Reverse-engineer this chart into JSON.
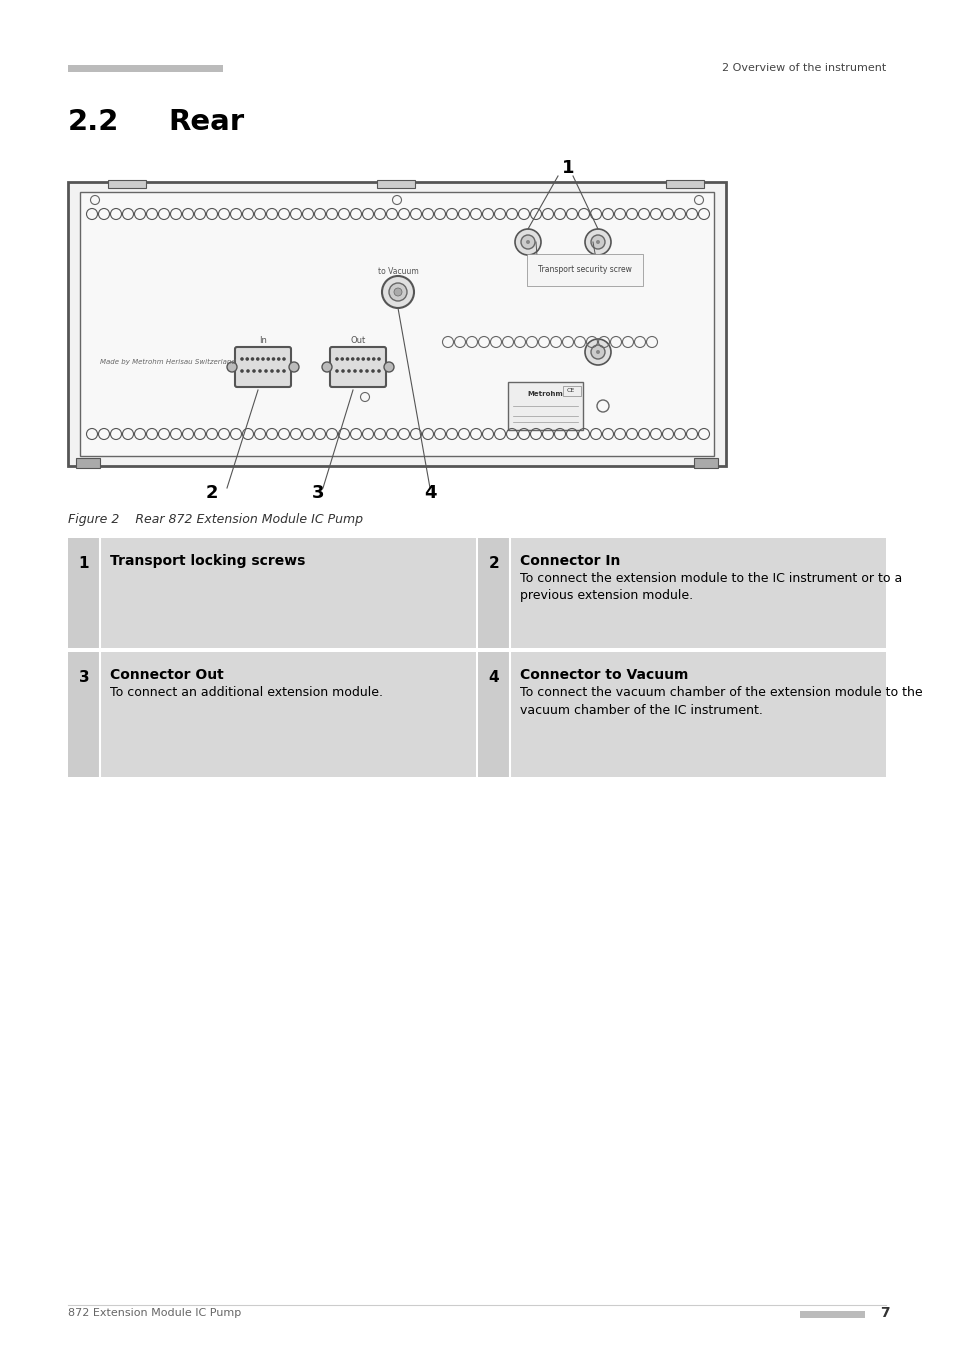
{
  "page_bg": "#ffffff",
  "header_text_right": "2 Overview of the instrument",
  "section_number": "2.2",
  "section_title": "Rear",
  "figure_label": "Figure 2",
  "figure_caption": "Rear 872 Extension Module IC Pump",
  "footer_text_left": "872 Extension Module IC Pump",
  "table": [
    {
      "num": "1",
      "title": "Transport locking screws",
      "body": ""
    },
    {
      "num": "2",
      "title": "Connector In",
      "body": "To connect the extension module to the IC instrument or to a previous extension module."
    },
    {
      "num": "3",
      "title": "Connector Out",
      "body": "To connect an additional extension module."
    },
    {
      "num": "4",
      "title": "Connector to Vacuum",
      "body": "To connect the vacuum chamber of the extension module to the vacuum chamber of the IC instrument."
    }
  ],
  "table_bg": "#d8d8d8",
  "text_color": "#000000"
}
